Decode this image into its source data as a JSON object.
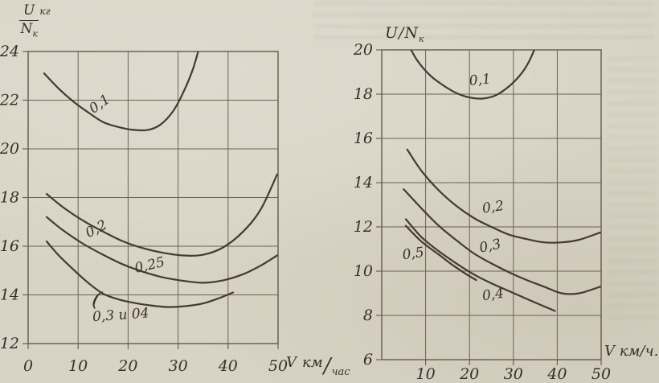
{
  "page": {
    "kind": "scanned book figure, two line charts",
    "paper_color": "#d8d4c5",
    "ink_color": "#463931",
    "grid_color": "#6f6052",
    "text_color": "#39302a"
  },
  "chart_data": [
    {
      "type": "line",
      "title": "",
      "ylabel": {
        "numerator": "U",
        "unit": "кг",
        "denominator": "N",
        "denominator_sub": "к"
      },
      "xlabel": {
        "symbol": "V",
        "numerator": "км",
        "denominator": "час"
      },
      "xlim": [
        0,
        50
      ],
      "ylim": [
        12,
        24
      ],
      "x_ticks": [
        0,
        10,
        20,
        30,
        40,
        50
      ],
      "y_ticks": [
        12,
        14,
        16,
        18,
        20,
        22,
        24
      ],
      "grid": true,
      "legend": "labels on curves",
      "series": [
        {
          "name": "0,1",
          "label_x": 14.8,
          "label_y": 21.7,
          "label_rotate": -35,
          "points": [
            [
              3.2,
              23.1
            ],
            [
              6,
              22.5
            ],
            [
              9,
              21.95
            ],
            [
              12,
              21.5
            ],
            [
              15,
              21.1
            ],
            [
              18,
              20.9
            ],
            [
              21,
              20.78
            ],
            [
              24,
              20.78
            ],
            [
              26.5,
              21.0
            ],
            [
              29,
              21.55
            ],
            [
              31,
              22.3
            ],
            [
              33,
              23.3
            ],
            [
              34.6,
              24.45
            ]
          ]
        },
        {
          "name": "0,2",
          "label_x": 14.0,
          "label_y": 16.55,
          "label_rotate": -27,
          "points": [
            [
              3.7,
              18.15
            ],
            [
              7,
              17.6
            ],
            [
              11,
              17.05
            ],
            [
              15,
              16.6
            ],
            [
              19,
              16.2
            ],
            [
              23,
              15.92
            ],
            [
              27,
              15.73
            ],
            [
              31,
              15.62
            ],
            [
              35,
              15.65
            ],
            [
              39,
              15.95
            ],
            [
              43,
              16.6
            ],
            [
              46.5,
              17.5
            ],
            [
              49.8,
              18.95
            ]
          ]
        },
        {
          "name": "0,25",
          "label_x": 24.5,
          "label_y": 15.05,
          "label_rotate": -13,
          "points": [
            [
              3.7,
              17.2
            ],
            [
              7,
              16.65
            ],
            [
              11,
              16.1
            ],
            [
              15,
              15.65
            ],
            [
              19,
              15.25
            ],
            [
              23,
              14.95
            ],
            [
              27,
              14.72
            ],
            [
              31,
              14.58
            ],
            [
              35,
              14.5
            ],
            [
              39,
              14.6
            ],
            [
              43,
              14.85
            ],
            [
              46.5,
              15.2
            ],
            [
              49.8,
              15.62
            ]
          ]
        },
        {
          "name": "0,3 и 04",
          "label_x": 18.6,
          "label_y": 13.0,
          "label_rotate": -4,
          "points": [
            [
              3.7,
              16.2
            ],
            [
              6,
              15.65
            ],
            [
              9,
              15.05
            ],
            [
              12,
              14.5
            ],
            [
              15,
              14.05
            ],
            [
              18,
              13.82
            ],
            [
              21,
              13.68
            ],
            [
              24,
              13.58
            ],
            [
              28,
              13.5
            ],
            [
              32,
              13.55
            ],
            [
              35,
              13.65
            ],
            [
              38,
              13.85
            ],
            [
              41,
              14.1
            ]
          ]
        }
      ],
      "annotations": [
        {
          "text": "(",
          "x": 13.4,
          "y": 13.55,
          "rotate": 14,
          "size": 26
        }
      ]
    },
    {
      "type": "line",
      "title": "",
      "ylabel": {
        "text": "U/N",
        "sub": "к"
      },
      "xlabel": {
        "text": "V км/ч."
      },
      "xlim": [
        0,
        50
      ],
      "ylim": [
        6,
        20
      ],
      "x_ticks": [
        10,
        20,
        30,
        40,
        50
      ],
      "y_ticks": [
        6,
        8,
        10,
        12,
        14,
        16,
        18,
        20
      ],
      "grid": true,
      "legend": "labels on curves",
      "series": [
        {
          "name": "0,1",
          "label_x": 22.5,
          "label_y": 18.45,
          "label_rotate": -6,
          "points": [
            [
              5.8,
              20.35
            ],
            [
              8,
              19.55
            ],
            [
              11,
              18.85
            ],
            [
              14,
              18.4
            ],
            [
              17,
              18.05
            ],
            [
              20,
              17.85
            ],
            [
              23,
              17.8
            ],
            [
              26,
              17.95
            ],
            [
              29,
              18.35
            ],
            [
              31.5,
              18.85
            ],
            [
              33.5,
              19.45
            ],
            [
              35.5,
              20.35
            ]
          ]
        },
        {
          "name": "0,2",
          "label_x": 25.5,
          "label_y": 12.7,
          "label_rotate": -8,
          "points": [
            [
              5.8,
              15.5
            ],
            [
              9,
              14.55
            ],
            [
              13,
              13.65
            ],
            [
              17,
              12.95
            ],
            [
              21,
              12.4
            ],
            [
              25,
              12.0
            ],
            [
              29,
              11.65
            ],
            [
              33,
              11.45
            ],
            [
              37,
              11.3
            ],
            [
              41,
              11.3
            ],
            [
              45,
              11.42
            ],
            [
              49.8,
              11.75
            ]
          ]
        },
        {
          "name": "0,3",
          "label_x": 24.9,
          "label_y": 10.95,
          "label_rotate": -12,
          "points": [
            [
              5,
              13.7
            ],
            [
              9,
              12.85
            ],
            [
              13,
              12.05
            ],
            [
              17,
              11.4
            ],
            [
              21,
              10.8
            ],
            [
              25,
              10.35
            ],
            [
              29,
              9.95
            ],
            [
              33,
              9.6
            ],
            [
              37,
              9.3
            ],
            [
              41,
              9.0
            ],
            [
              45,
              9.0
            ],
            [
              49.8,
              9.3
            ]
          ]
        },
        {
          "name": "0,4",
          "label_x": 25.5,
          "label_y": 8.75,
          "label_rotate": -8,
          "points": [
            [
              5.5,
              12.35
            ],
            [
              9,
              11.55
            ],
            [
              13,
              10.9
            ],
            [
              17,
              10.35
            ],
            [
              21,
              9.85
            ],
            [
              25,
              9.45
            ],
            [
              29,
              9.1
            ],
            [
              33,
              8.75
            ],
            [
              36.5,
              8.45
            ],
            [
              39.5,
              8.2
            ]
          ]
        },
        {
          "name": "0,5",
          "label_x": 7.3,
          "label_y": 10.6,
          "label_rotate": -8,
          "points": [
            [
              5.5,
              12.05
            ],
            [
              9,
              11.35
            ],
            [
              13,
              10.75
            ],
            [
              16,
              10.3
            ],
            [
              19,
              9.9
            ],
            [
              21.5,
              9.6
            ]
          ]
        }
      ],
      "annotations": []
    }
  ]
}
